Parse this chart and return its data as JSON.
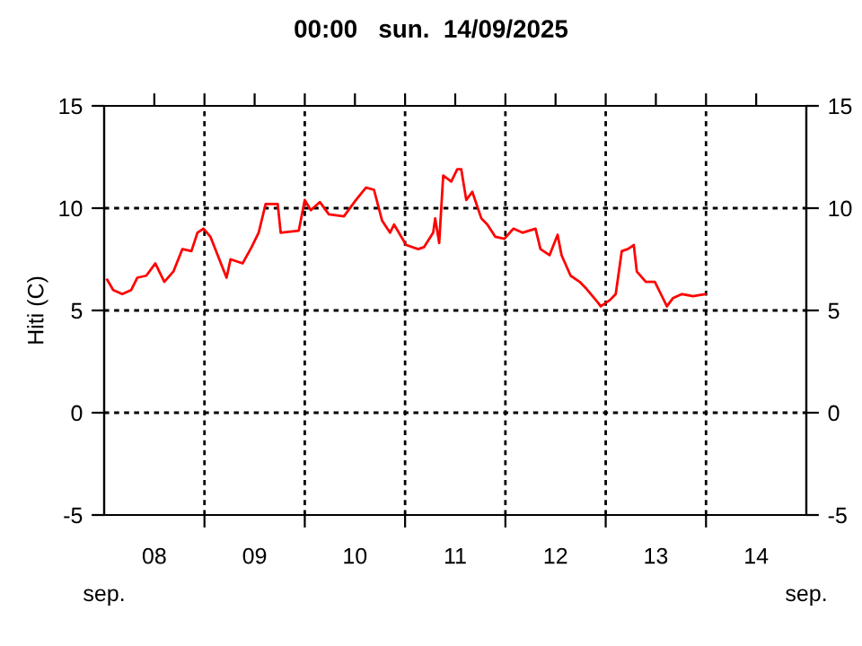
{
  "chart_data": {
    "type": "line",
    "title": "00:00   sun.  14/09/2025",
    "ylabel": "Hiti (C)",
    "x": [
      8.03,
      8.09,
      8.18,
      8.27,
      8.33,
      8.42,
      8.51,
      8.6,
      8.69,
      8.78,
      8.87,
      8.93,
      8.99,
      9.06,
      9.14,
      9.22,
      9.26,
      9.38,
      9.47,
      9.54,
      9.61,
      9.73,
      9.76,
      9.94,
      10.0,
      10.06,
      10.15,
      10.24,
      10.39,
      10.51,
      10.61,
      10.69,
      10.77,
      10.85,
      10.89,
      11.01,
      11.13,
      11.19,
      11.28,
      11.3,
      11.34,
      11.38,
      11.46,
      11.52,
      11.56,
      11.61,
      11.67,
      11.76,
      11.82,
      11.9,
      11.99,
      12.08,
      12.17,
      12.3,
      12.35,
      12.44,
      12.52,
      12.56,
      12.65,
      12.74,
      12.8,
      12.92,
      12.95,
      13.04,
      13.1,
      13.16,
      13.22,
      13.28,
      13.31,
      13.4,
      13.49,
      13.55,
      13.61,
      13.67,
      13.76,
      13.87,
      13.99
    ],
    "series": [
      {
        "color": "#ff0000",
        "values": [
          6.5,
          6.0,
          5.8,
          6.0,
          6.6,
          6.7,
          7.3,
          6.4,
          6.9,
          8.0,
          7.9,
          8.8,
          9.0,
          8.6,
          7.6,
          6.6,
          7.5,
          7.3,
          8.1,
          8.8,
          10.2,
          10.2,
          8.8,
          8.9,
          10.4,
          9.9,
          10.3,
          9.7,
          9.6,
          10.4,
          11.0,
          10.9,
          9.4,
          8.8,
          9.2,
          8.2,
          8.0,
          8.1,
          8.8,
          9.5,
          8.3,
          11.6,
          11.3,
          11.9,
          11.9,
          10.4,
          10.8,
          9.5,
          9.2,
          8.6,
          8.5,
          9.0,
          8.8,
          9.0,
          8.0,
          7.7,
          8.7,
          7.7,
          6.7,
          6.4,
          6.1,
          5.4,
          5.2,
          5.5,
          5.8,
          7.9,
          8.0,
          8.2,
          6.9,
          6.4,
          6.4,
          5.8,
          5.2,
          5.6,
          5.8,
          5.7,
          5.8
        ]
      }
    ],
    "xlim": [
      8,
      15
    ],
    "xticks": [
      {
        "value": 8.5,
        "label": "08"
      },
      {
        "value": 9,
        "label": null
      },
      {
        "value": 9.5,
        "label": "09"
      },
      {
        "value": 10,
        "label": null
      },
      {
        "value": 10.5,
        "label": "10"
      },
      {
        "value": 11,
        "label": null
      },
      {
        "value": 11.5,
        "label": "11"
      },
      {
        "value": 12,
        "label": null
      },
      {
        "value": 12.5,
        "label": "12"
      },
      {
        "value": 13,
        "label": null
      },
      {
        "value": 13.5,
        "label": "13"
      },
      {
        "value": 14,
        "label": null
      },
      {
        "value": 14.5,
        "label": "14"
      }
    ],
    "ylim": [
      -5,
      15
    ],
    "yticks": [
      -5,
      0,
      5,
      10,
      15
    ],
    "y2lim": [
      -5,
      15
    ],
    "y2ticks": [
      -5,
      0,
      5,
      10,
      15
    ],
    "grid": true,
    "marker": "none",
    "line_style": "solid",
    "annotations": [
      "sep.",
      "sep."
    ]
  }
}
